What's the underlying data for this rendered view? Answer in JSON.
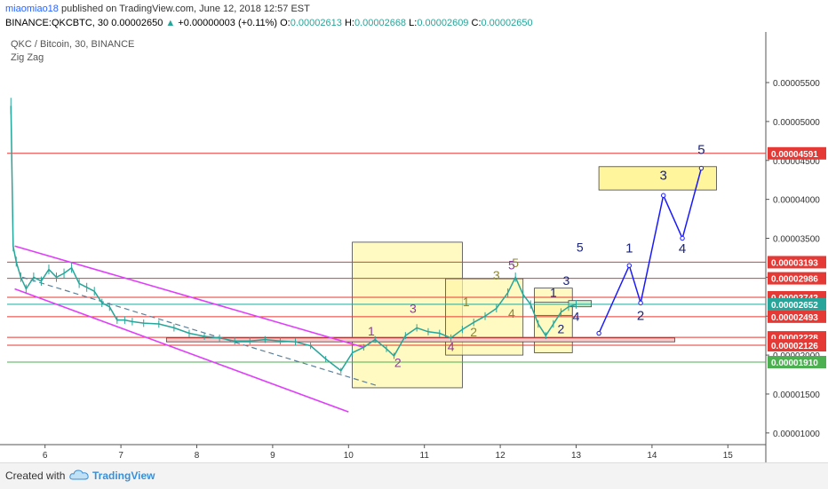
{
  "header": {
    "user": "miaomiao18",
    "published_text": " published on TradingView.com, June 12, 2018 12:57 EST",
    "symbol": "BINANCE:QKCBTC, 30",
    "price": "0.00002650",
    "change": "+0.00000003 (+0.11%)",
    "open_label": "O:",
    "open": "0.00002613",
    "high_label": "H:",
    "high": "0.00002668",
    "low_label": "L:",
    "low": "0.00002609",
    "close_label": "C:",
    "close": "0.00002650"
  },
  "chart_data": {
    "type": "line",
    "title": "QKC / Bitcoin, 30, BINANCE",
    "indicator": "Zig Zag",
    "x_ticks": [
      "6",
      "7",
      "8",
      "9",
      "10",
      "11",
      "12",
      "13",
      "14",
      "15"
    ],
    "y_ticks": [
      "0.00005500",
      "0.00005000",
      "0.00004500",
      "0.00004000",
      "0.00003500",
      "0.00003000",
      "0.00002500",
      "0.00002000",
      "0.00001500",
      "0.00001000"
    ],
    "ylim": [
      8.5e-06,
      6.15e-05
    ],
    "price_levels": [
      {
        "label": "0.00004591",
        "value": 4.591e-05,
        "color": "#e53935"
      },
      {
        "label": "0.00003193",
        "value": 3.193e-05,
        "color": "#e53935"
      },
      {
        "label": "0.00002986",
        "value": 2.986e-05,
        "color": "#e53935"
      },
      {
        "label": "0.00002742",
        "value": 2.742e-05,
        "color": "#e53935"
      },
      {
        "label": "0.00002652",
        "value": 2.652e-05,
        "color": "#26a69a"
      },
      {
        "label": "0.00002493",
        "value": 2.493e-05,
        "color": "#e53935"
      },
      {
        "label": "0.00002228",
        "value": 2.228e-05,
        "color": "#e53935"
      },
      {
        "label": "0.00002126",
        "value": 2.126e-05,
        "color": "#e53935"
      },
      {
        "label": "0.00001910",
        "value": 1.91e-05,
        "color": "#4caf50"
      }
    ],
    "price_series": [
      [
        5.55,
        5.2e-05
      ],
      [
        5.58,
        3.4e-05
      ],
      [
        5.62,
        3.2e-05
      ],
      [
        5.68,
        3e-05
      ],
      [
        5.75,
        2.85e-05
      ],
      [
        5.85,
        3e-05
      ],
      [
        5.95,
        2.95e-05
      ],
      [
        6.05,
        3.1e-05
      ],
      [
        6.15,
        3e-05
      ],
      [
        6.25,
        3.05e-05
      ],
      [
        6.35,
        3.12e-05
      ],
      [
        6.45,
        2.92e-05
      ],
      [
        6.55,
        2.87e-05
      ],
      [
        6.65,
        2.82e-05
      ],
      [
        6.75,
        2.67e-05
      ],
      [
        6.85,
        2.62e-05
      ],
      [
        6.95,
        2.45e-05
      ],
      [
        7.05,
        2.45e-05
      ],
      [
        7.15,
        2.43e-05
      ],
      [
        7.3,
        2.41e-05
      ],
      [
        7.5,
        2.4e-05
      ],
      [
        7.7,
        2.35e-05
      ],
      [
        7.9,
        2.28e-05
      ],
      [
        8.1,
        2.24e-05
      ],
      [
        8.3,
        2.22e-05
      ],
      [
        8.5,
        2.18e-05
      ],
      [
        8.7,
        2.18e-05
      ],
      [
        8.9,
        2.2e-05
      ],
      [
        9.1,
        2.18e-05
      ],
      [
        9.3,
        2.17e-05
      ],
      [
        9.5,
        2.12e-05
      ],
      [
        9.7,
        1.95e-05
      ],
      [
        9.9,
        1.8e-05
      ],
      [
        10.05,
        2.03e-05
      ],
      [
        10.2,
        2.1e-05
      ],
      [
        10.35,
        2.2e-05
      ],
      [
        10.5,
        2.08e-05
      ],
      [
        10.6,
        1.99e-05
      ],
      [
        10.75,
        2.25e-05
      ],
      [
        10.9,
        2.35e-05
      ],
      [
        11.05,
        2.3e-05
      ],
      [
        11.2,
        2.28e-05
      ],
      [
        11.35,
        2.22e-05
      ],
      [
        11.5,
        2.33e-05
      ],
      [
        11.65,
        2.42e-05
      ],
      [
        11.8,
        2.5e-05
      ],
      [
        11.95,
        2.6e-05
      ],
      [
        12.1,
        2.8e-05
      ],
      [
        12.2,
        3e-05
      ],
      [
        12.3,
        2.78e-05
      ],
      [
        12.4,
        2.65e-05
      ],
      [
        12.5,
        2.4e-05
      ],
      [
        12.6,
        2.25e-05
      ],
      [
        12.7,
        2.4e-05
      ],
      [
        12.8,
        2.55e-05
      ],
      [
        12.9,
        2.62e-05
      ],
      [
        13.0,
        2.65e-05
      ]
    ],
    "projection": [
      [
        13.3,
        2.28e-05
      ],
      [
        13.7,
        3.15e-05
      ],
      [
        13.85,
        2.67e-05
      ],
      [
        14.15,
        4.05e-05
      ],
      [
        14.4,
        3.5e-05
      ],
      [
        14.65,
        4.4e-05
      ]
    ],
    "projection_labels": [
      {
        "text": "1",
        "x": 13.7,
        "y": 3.32e-05
      },
      {
        "text": "2",
        "x": 13.85,
        "y": 2.45e-05
      },
      {
        "text": "3",
        "x": 14.15,
        "y": 4.25e-05
      },
      {
        "text": "4",
        "x": 14.4,
        "y": 3.31e-05
      },
      {
        "text": "5",
        "x": 14.65,
        "y": 4.58e-05
      }
    ],
    "wave_labels": [
      {
        "text": "1",
        "x": 10.3,
        "y": 2.25e-05,
        "color": "#8e3a9e"
      },
      {
        "text": "2",
        "x": 10.65,
        "y": 1.85e-05,
        "color": "#8e3a9e"
      },
      {
        "text": "3",
        "x": 10.85,
        "y": 2.54e-05,
        "color": "#8e3a9e"
      },
      {
        "text": "4",
        "x": 11.35,
        "y": 2.05e-05,
        "color": "#8e3a9e"
      },
      {
        "text": "5",
        "x": 12.15,
        "y": 3.1e-05,
        "color": "#8e3a9e"
      },
      {
        "text": "1",
        "x": 11.55,
        "y": 2.63e-05,
        "color": "#8d8637"
      },
      {
        "text": "2",
        "x": 11.65,
        "y": 2.24e-05,
        "color": "#8d8637"
      },
      {
        "text": "3",
        "x": 11.95,
        "y": 2.97e-05,
        "color": "#8d8637"
      },
      {
        "text": "4",
        "x": 12.15,
        "y": 2.48e-05,
        "color": "#8d8637"
      },
      {
        "text": "5",
        "x": 12.2,
        "y": 3.13e-05,
        "color": "#8d8637"
      },
      {
        "text": "1",
        "x": 12.7,
        "y": 2.75e-05,
        "color": "#1a237e"
      },
      {
        "text": "2",
        "x": 12.8,
        "y": 2.28e-05,
        "color": "#1a237e"
      },
      {
        "text": "3",
        "x": 12.87,
        "y": 2.9e-05,
        "color": "#1a237e"
      },
      {
        "text": "4",
        "x": 13.0,
        "y": 2.44e-05,
        "color": "#1a237e"
      },
      {
        "text": "5",
        "x": 13.05,
        "y": 3.33e-05,
        "color": "#1a237e"
      }
    ]
  },
  "footer": {
    "created_with": "Created with",
    "brand": "TradingView"
  },
  "colors": {
    "up": "#26a69a",
    "projection": "#1a1aff",
    "channel": "#e040fb",
    "box_fill": "#fff7a8",
    "level_red": "#e53935"
  }
}
